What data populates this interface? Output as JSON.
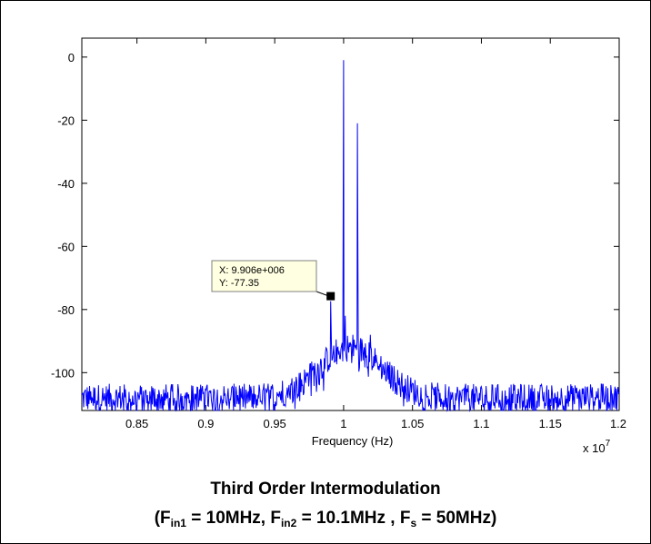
{
  "chart_data": {
    "type": "line",
    "xlabel": "Frequency (Hz)",
    "ylabel": "",
    "x_multiplier": "x 10",
    "x_multiplier_exp": "7",
    "xlim": [
      8100000.0,
      12000000.0
    ],
    "ylim": [
      -112,
      6
    ],
    "xticks": [
      8500000.0,
      9000000.0,
      9500000.0,
      10000000.0,
      10500000.0,
      11000000.0,
      11500000.0,
      12000000.0
    ],
    "xtick_labels": [
      "0.85",
      "0.9",
      "0.95",
      "1",
      "1.05",
      "1.1",
      "1.15",
      "1.2"
    ],
    "yticks": [
      0,
      -20,
      -40,
      -60,
      -80,
      -100
    ],
    "ytick_labels": [
      "0",
      "-20",
      "-40",
      "-60",
      "-80",
      "-100"
    ],
    "grid": false,
    "line_color": "#0000ff",
    "series": [
      {
        "noise_floor": -108,
        "peaks": [
          {
            "x": 10000000.0,
            "y": -1
          },
          {
            "x": 10100000.0,
            "y": -21
          },
          {
            "x": 9906000.0,
            "y": -77.35
          },
          {
            "x": 10012000.0,
            "y": -82
          },
          {
            "x": 10194000.0,
            "y": -88
          }
        ]
      }
    ],
    "annotations": [
      {
        "x": 9906000.0,
        "y": -77.35,
        "line1": "X: 9.906e+006",
        "line2": "Y: -77.35"
      }
    ]
  },
  "caption": {
    "title": "Third Order Intermodulation",
    "open": "(F",
    "sub1": "in1",
    "mid1": " = 10MHz, F",
    "sub2": "in2",
    "mid2": " = 10.1MHz , F",
    "sub3": "s",
    "end": " = 50MHz)"
  }
}
